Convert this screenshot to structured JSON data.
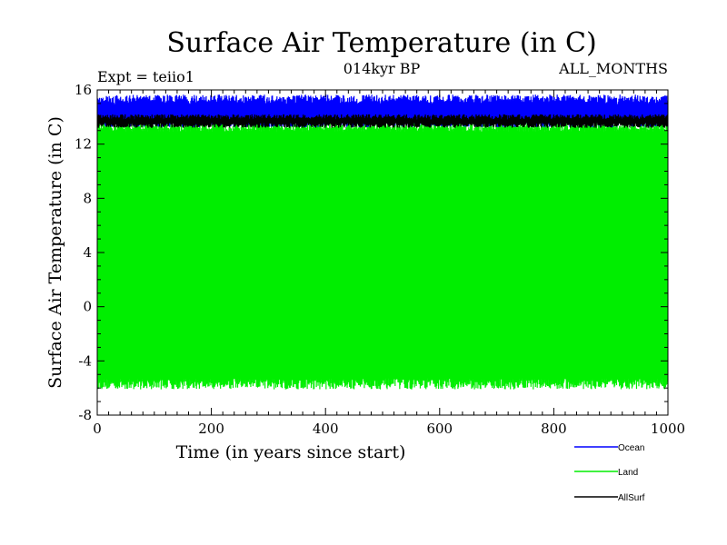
{
  "chart_data": {
    "type": "line",
    "title": "Surface Air Temperature (in C)",
    "subtitle_left": "Expt = teiio1",
    "subtitle_center": "014kyr BP",
    "subtitle_right": "ALL_MONTHS",
    "xlabel": "Time (in years since start)",
    "ylabel": "Surface Air Temperature (in C)",
    "xlim": [
      0,
      1000
    ],
    "ylim": [
      -8,
      16
    ],
    "x_ticks": [
      0,
      200,
      400,
      600,
      800,
      1000
    ],
    "y_ticks": [
      -8,
      -4,
      0,
      4,
      8,
      12,
      16
    ],
    "x_tick_labels": [
      "0",
      "200",
      "400",
      "600",
      "800",
      "1000"
    ],
    "y_tick_labels": [
      "-8",
      "-4",
      "0",
      "4",
      "8",
      "12",
      "16"
    ],
    "grid": false,
    "legend_position": "bottom-right",
    "series": [
      {
        "name": "Ocean",
        "color": "#0000ff",
        "low": 13.6,
        "high": 15.3,
        "noise": 0.35
      },
      {
        "name": "Land",
        "color": "#00ee00",
        "low": -5.7,
        "high": 13.3,
        "noise": 0.4
      },
      {
        "name": "AllSurf",
        "color": "#000000",
        "low": 13.4,
        "high": 14.0,
        "noise": 0.2
      }
    ]
  }
}
